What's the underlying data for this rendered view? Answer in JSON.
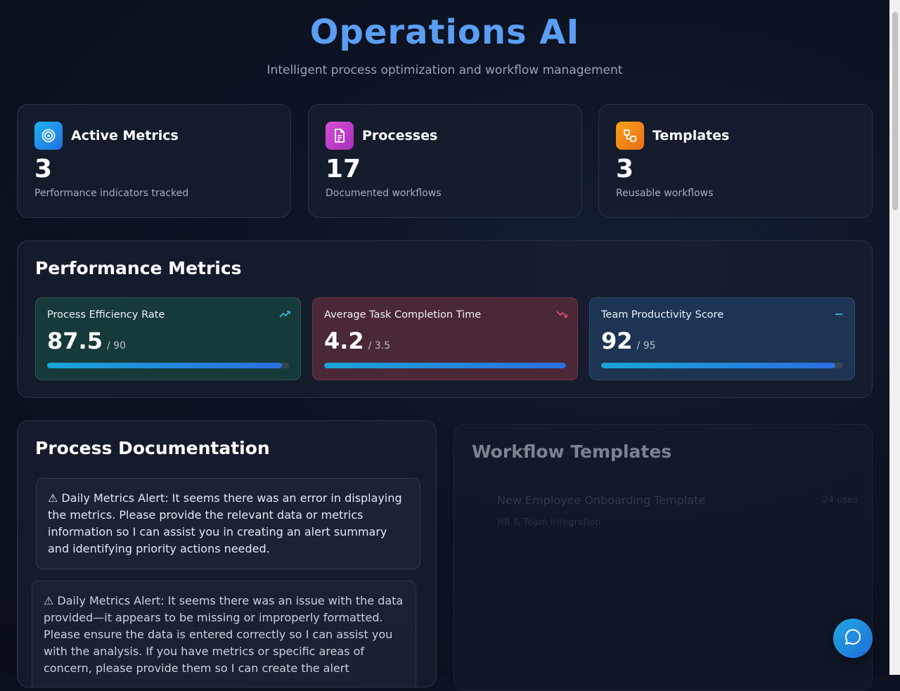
{
  "header": {
    "title": "Operations AI",
    "subtitle": "Intelligent process optimization and workflow management"
  },
  "stats": [
    {
      "title": "Active Metrics",
      "value": "3",
      "desc": "Performance indicators tracked",
      "icon": "target-icon",
      "color": "#1e9ff2"
    },
    {
      "title": "Processes",
      "value": "17",
      "desc": "Documented workflows",
      "icon": "document-icon",
      "color": "#c33cc9"
    },
    {
      "title": "Templates",
      "value": "3",
      "desc": "Reusable workflows",
      "icon": "workflow-icon",
      "color": "#f08a18"
    }
  ],
  "performance": {
    "title": "Performance Metrics",
    "metrics": [
      {
        "name": "Process Efficiency Rate",
        "value": "87.5",
        "target": "/ 90",
        "progress": 0.972,
        "trend": "up",
        "trend_color": "#3db6e8",
        "bg": "#163a3a"
      },
      {
        "name": "Average Task Completion Time",
        "value": "4.2",
        "target": "/ 3.5",
        "progress": 1.0,
        "trend": "down",
        "trend_color": "#e0506a",
        "bg": "#4a2838"
      },
      {
        "name": "Team Productivity Score",
        "value": "92",
        "target": "/ 95",
        "progress": 0.968,
        "trend": "flat",
        "trend_color": "#3db6e8",
        "bg": "#1d3553"
      }
    ]
  },
  "process_docs": {
    "title": "Process Documentation",
    "alerts": [
      "⚠ Daily Metrics Alert: It seems there was an error in displaying the metrics. Please provide the relevant data or metrics information so I can assist you in creating an alert summary and identifying priority actions needed.",
      "⚠ Daily Metrics Alert: It seems there was an issue with the data provided—it appears to be missing or improperly formatted. Please ensure the data is entered correctly so I can assist you with the analysis. If you have metrics or specific areas of concern, please provide them so I can create the alert"
    ]
  },
  "workflow_templates": {
    "title": "Workflow Templates",
    "items": [
      {
        "name": "New Employee Onboarding Template",
        "category": "HR & Team Integration",
        "uses": "24 uses"
      }
    ]
  }
}
